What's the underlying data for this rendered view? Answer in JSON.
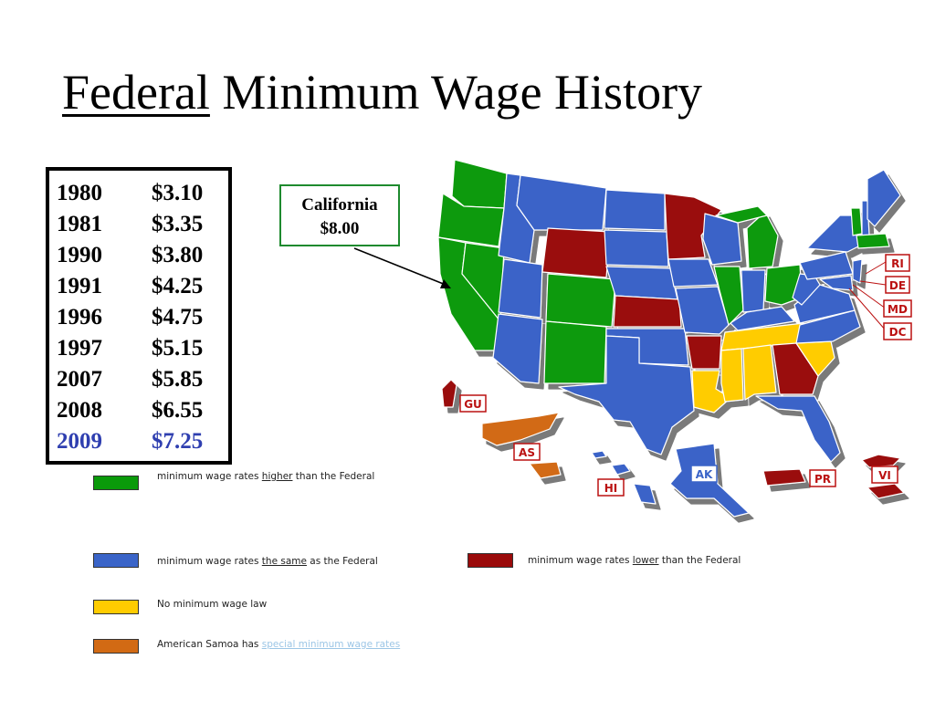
{
  "title": {
    "underlined": "Federal",
    "rest": " Minimum Wage History"
  },
  "wage_history": [
    {
      "year": "1980",
      "wage": "$3.10"
    },
    {
      "year": "1981",
      "wage": "$3.35"
    },
    {
      "year": "1990",
      "wage": "$3.80"
    },
    {
      "year": "1991",
      "wage": "$4.25"
    },
    {
      "year": "1996",
      "wage": "$4.75"
    },
    {
      "year": "1997",
      "wage": "$5.15"
    },
    {
      "year": "2007",
      "wage": "$5.85"
    },
    {
      "year": "2008",
      "wage": "$6.55"
    },
    {
      "year": "2009",
      "wage": "$7.25"
    }
  ],
  "callout": {
    "line1": "California",
    "line2": "$8.00"
  },
  "territory_labels": {
    "ri": "RI",
    "de": "DE",
    "md": "MD",
    "dc": "DC",
    "gu": "GU",
    "as": "AS",
    "hi": "HI",
    "ak": "AK",
    "pr": "PR",
    "vi": "VI"
  },
  "colors": {
    "higher": "#0a9a0a",
    "same": "#3a64c8",
    "lower": "#9a0a0a",
    "none": "#ffcc00",
    "samoa": "#d26a14",
    "current_year": "#2f3fb0"
  },
  "legend": {
    "higher": {
      "pre": "minimum wage rates ",
      "em": "higher",
      "post": " than the Federal"
    },
    "same": {
      "pre": "minimum wage rates ",
      "em": "the same",
      "post": " as the Federal"
    },
    "lower": {
      "pre": "minimum wage rates ",
      "em": "lower",
      "post": " than the Federal"
    },
    "none": {
      "text": "No minimum wage law"
    },
    "samoa": {
      "pre": "American Samoa has ",
      "link": "special minimum wage rates"
    }
  }
}
